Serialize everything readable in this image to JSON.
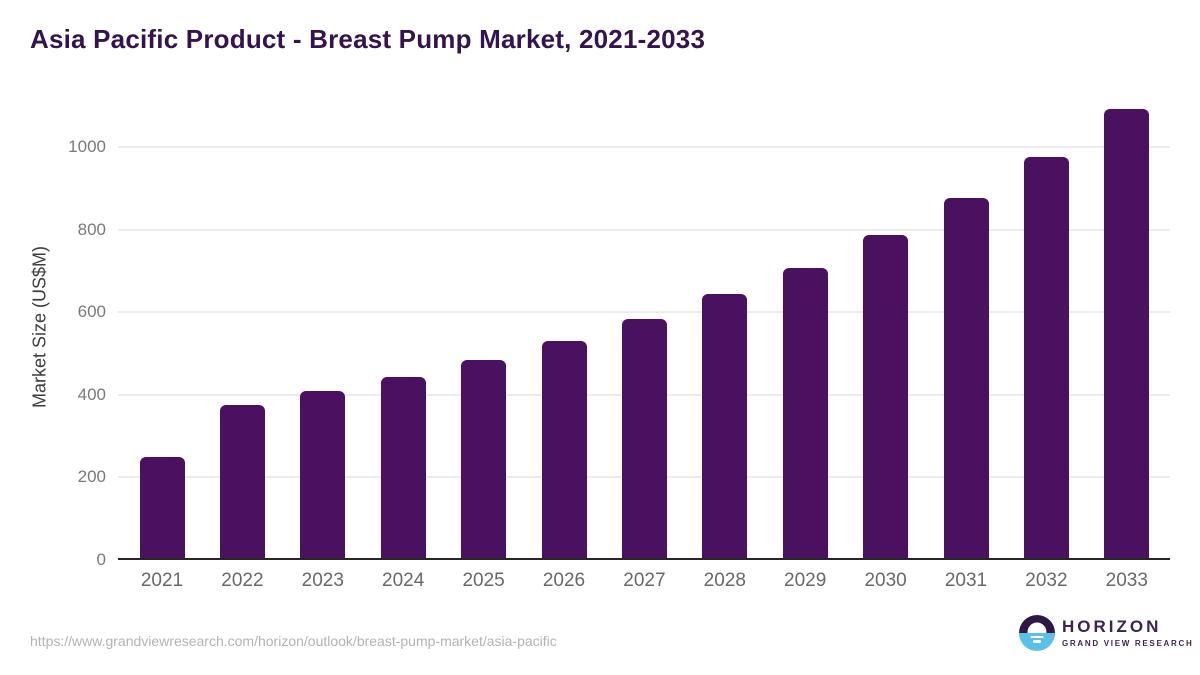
{
  "chart_data": {
    "type": "bar",
    "title": "Asia Pacific Product - Breast Pump Market, 2021-2033",
    "ylabel": "Market Size (US$M)",
    "xlabel": "",
    "categories": [
      "2021",
      "2022",
      "2023",
      "2024",
      "2025",
      "2026",
      "2027",
      "2028",
      "2029",
      "2030",
      "2031",
      "2032",
      "2033"
    ],
    "values": [
      245,
      370,
      404,
      438,
      480,
      526,
      579,
      640,
      704,
      783,
      872,
      972,
      1088
    ],
    "yticks": [
      0,
      200,
      400,
      600,
      800,
      1000
    ],
    "ylim": [
      0,
      1127
    ],
    "grid": "horizontal-only",
    "legend": "none",
    "bar_color": "#4a1161"
  },
  "footer": {
    "source_url": "https://www.grandviewresearch.com/horizon/outlook/breast-pump-market/asia-pacific",
    "logo": {
      "title": "HORIZON",
      "subtitle": "GRAND VIEW RESEARCH",
      "icon": "sun-over-water-icon",
      "icon_top_color": "#2c1a45",
      "icon_bottom_color": "#5ac0e8"
    }
  },
  "colors": {
    "title_text": "#331450",
    "bar_fill": "#4a1161",
    "axis_line": "#262626",
    "gridline": "#ececec",
    "tick_text": "#7a7a7a",
    "source_text": "#b3b3b3",
    "logo_text": "#3a2356",
    "background": "#ffffff"
  }
}
